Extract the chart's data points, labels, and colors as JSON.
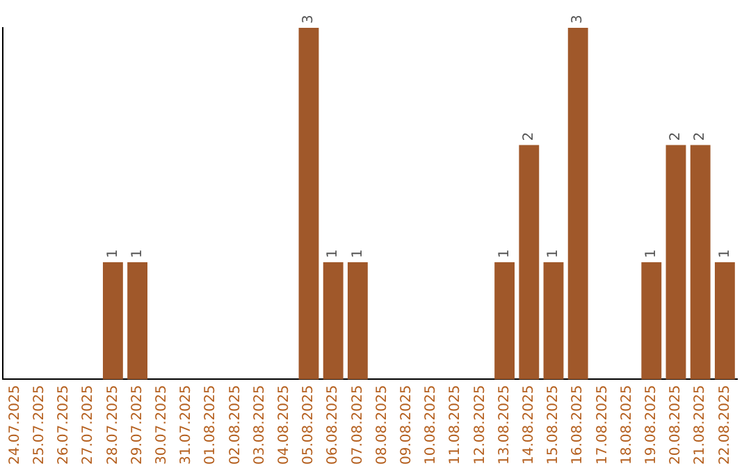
{
  "chart_data": {
    "type": "bar",
    "categories": [
      "24.07.2025",
      "25.07.2025",
      "26.07.2025",
      "27.07.2025",
      "28.07.2025",
      "29.07.2025",
      "30.07.2025",
      "31.07.2025",
      "01.08.2025",
      "02.08.2025",
      "03.08.2025",
      "04.08.2025",
      "05.08.2025",
      "06.08.2025",
      "07.08.2025",
      "08.08.2025",
      "09.08.2025",
      "10.08.2025",
      "11.08.2025",
      "12.08.2025",
      "13.08.2025",
      "14.08.2025",
      "15.08.2025",
      "16.08.2025",
      "17.08.2025",
      "18.08.2025",
      "19.08.2025",
      "20.08.2025",
      "21.08.2025",
      "22.08.2025"
    ],
    "values": [
      0,
      0,
      0,
      0,
      1,
      1,
      0,
      0,
      0,
      0,
      0,
      0,
      3,
      1,
      1,
      0,
      0,
      0,
      0,
      0,
      1,
      2,
      1,
      3,
      0,
      0,
      1,
      2,
      2,
      1
    ],
    "value_labels": [
      null,
      null,
      null,
      null,
      "1",
      "1",
      null,
      null,
      null,
      null,
      null,
      null,
      "3",
      "1",
      "1",
      null,
      null,
      null,
      null,
      null,
      "1",
      "2",
      "1",
      "3",
      null,
      null,
      "1",
      "2",
      "2",
      "1"
    ],
    "color": "#a0582a",
    "ylim": [
      0,
      3
    ],
    "tick_labels": "x",
    "grid": false,
    "legend": false
  }
}
